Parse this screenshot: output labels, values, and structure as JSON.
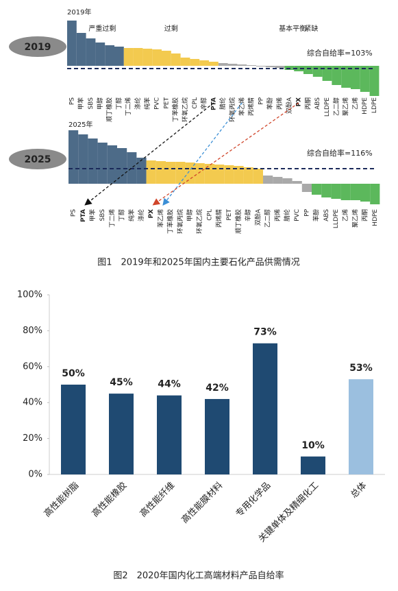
{
  "captions": [
    "图1　2019年和2025年国内主要石化产品供需情况",
    "图2　2020年国内化工高端材料产品自给率"
  ],
  "chart_data": [
    {
      "type": "bar",
      "title": "2019",
      "subtitle": "2019年",
      "annotation": "综合自给率=103%",
      "categories": [
        "PS",
        "甲苯",
        "SBS",
        "甲醇",
        "顺丁橡胶",
        "丁醇",
        "丁二烯",
        "涤纶",
        "纯苯",
        "PVC",
        "PET",
        "丁苯橡胶",
        "环氧乙烷",
        "CPL",
        "辛醇",
        "PTA",
        "腈纶",
        "环氧丙烷",
        "苯乙烯",
        "丙烯腈",
        "PP",
        "苯酚",
        "丙烯",
        "双酚A",
        "PX",
        "丙酮",
        "ABS",
        "LLDPE",
        "乙二醇",
        "聚乙烯",
        "乙烯",
        "HDPE",
        "LDPE"
      ],
      "series": [
        {
          "name": "严重过剩",
          "color": "#4d6b88",
          "values": [
            66,
            48,
            40,
            34,
            30,
            28,
            null,
            null,
            null,
            null,
            null,
            null,
            null,
            null,
            null,
            null,
            null,
            null,
            null,
            null,
            null,
            null,
            null,
            null,
            null,
            null,
            null,
            null,
            null,
            null,
            null,
            null,
            null
          ]
        },
        {
          "name": "过剩",
          "color": "#f3ca4f",
          "values": [
            null,
            null,
            null,
            null,
            null,
            null,
            26,
            26,
            25,
            24,
            22,
            18,
            12,
            10,
            8,
            6,
            null,
            null,
            null,
            null,
            null,
            null,
            null,
            null,
            null,
            null,
            null,
            null,
            null,
            null,
            null,
            null,
            null
          ]
        },
        {
          "name": "基本平衡",
          "color": "#a9a9a9",
          "values": [
            null,
            null,
            null,
            null,
            null,
            null,
            null,
            null,
            null,
            null,
            null,
            null,
            null,
            null,
            null,
            null,
            4,
            3,
            2,
            1,
            -1,
            -2,
            -3,
            null,
            null,
            null,
            null,
            null,
            null,
            null,
            null,
            null,
            null
          ]
        },
        {
          "name": "紧缺",
          "color": "#5cb85c",
          "values": [
            null,
            null,
            null,
            null,
            null,
            null,
            null,
            null,
            null,
            null,
            null,
            null,
            null,
            null,
            null,
            null,
            null,
            null,
            null,
            null,
            null,
            null,
            null,
            -6,
            -8,
            -12,
            -16,
            -22,
            -28,
            -32,
            -34,
            -38,
            -44
          ]
        }
      ]
    },
    {
      "type": "bar",
      "title": "2025",
      "subtitle": "2025年",
      "annotation": "综合自给率=116%",
      "categories": [
        "PS",
        "PTA",
        "甲苯",
        "SBS",
        "丁二烯",
        "丁醇",
        "纯苯",
        "涤纶",
        "PX",
        "苯乙烯",
        "丁苯橡胶",
        "环氧丙烷",
        "甲醇",
        "环氧乙烷",
        "CPL",
        "丙烯腈",
        "PET",
        "顺丁橡胶",
        "辛醇",
        "双酚A",
        "乙二醇",
        "丙烯",
        "腈纶",
        "PVC",
        "PP",
        "苯酚",
        "ABS",
        "LLDPE",
        "乙烯",
        "聚乙烯",
        "丙酮",
        "HDPE"
      ],
      "series": [
        {
          "color": "#4d6b88",
          "values": [
            78,
            72,
            66,
            60,
            56,
            52,
            46,
            38,
            null,
            null,
            null,
            null,
            null,
            null,
            null,
            null,
            null,
            null,
            null,
            null,
            null,
            null,
            null,
            null,
            null,
            null,
            null,
            null,
            null,
            null,
            null,
            null
          ]
        },
        {
          "color": "#f3ca4f",
          "values": [
            null,
            null,
            null,
            null,
            null,
            null,
            null,
            null,
            34,
            33,
            32,
            32,
            31,
            30,
            29,
            28,
            27,
            26,
            24,
            22,
            null,
            null,
            null,
            null,
            null,
            null,
            null,
            null,
            null,
            null,
            null,
            null
          ]
        },
        {
          "color": "#a9a9a9",
          "values": [
            null,
            null,
            null,
            null,
            null,
            null,
            null,
            null,
            null,
            null,
            null,
            null,
            null,
            null,
            null,
            null,
            null,
            null,
            null,
            null,
            12,
            10,
            8,
            4,
            -12,
            null,
            null,
            null,
            null,
            null,
            null,
            null
          ]
        },
        {
          "color": "#5cb85c",
          "values": [
            null,
            null,
            null,
            null,
            null,
            null,
            null,
            null,
            null,
            null,
            null,
            null,
            null,
            null,
            null,
            null,
            null,
            null,
            null,
            null,
            null,
            null,
            null,
            null,
            null,
            -16,
            -20,
            -22,
            -24,
            -24,
            -26,
            -30
          ]
        }
      ]
    },
    {
      "type": "bar",
      "categories": [
        "高性能树脂",
        "高性能橡胶",
        "高性能纤维",
        "高性能膜材料",
        "专用化学品",
        "关键单体及精细化工",
        "总体"
      ],
      "values": [
        50,
        45,
        44,
        42,
        73,
        10,
        53
      ],
      "value_labels": [
        "50%",
        "45%",
        "44%",
        "42%",
        "73%",
        "10%",
        "53%"
      ],
      "colors": [
        "#1f4a72",
        "#1f4a72",
        "#1f4a72",
        "#1f4a72",
        "#1f4a72",
        "#1f4a72",
        "#9bbfdf"
      ],
      "value_label_colors": [
        "#111111",
        "#111111",
        "#111111",
        "#111111",
        "#111111",
        "#111111",
        "#c0282d"
      ],
      "ylim": [
        0,
        100
      ],
      "yticks": [
        {
          "value": 0,
          "label": "0%"
        },
        {
          "value": 20,
          "label": "20%"
        },
        {
          "value": 40,
          "label": "40%"
        },
        {
          "value": 60,
          "label": "60%"
        },
        {
          "value": 80,
          "label": "80%"
        },
        {
          "value": 100,
          "label": "100%"
        }
      ]
    }
  ]
}
